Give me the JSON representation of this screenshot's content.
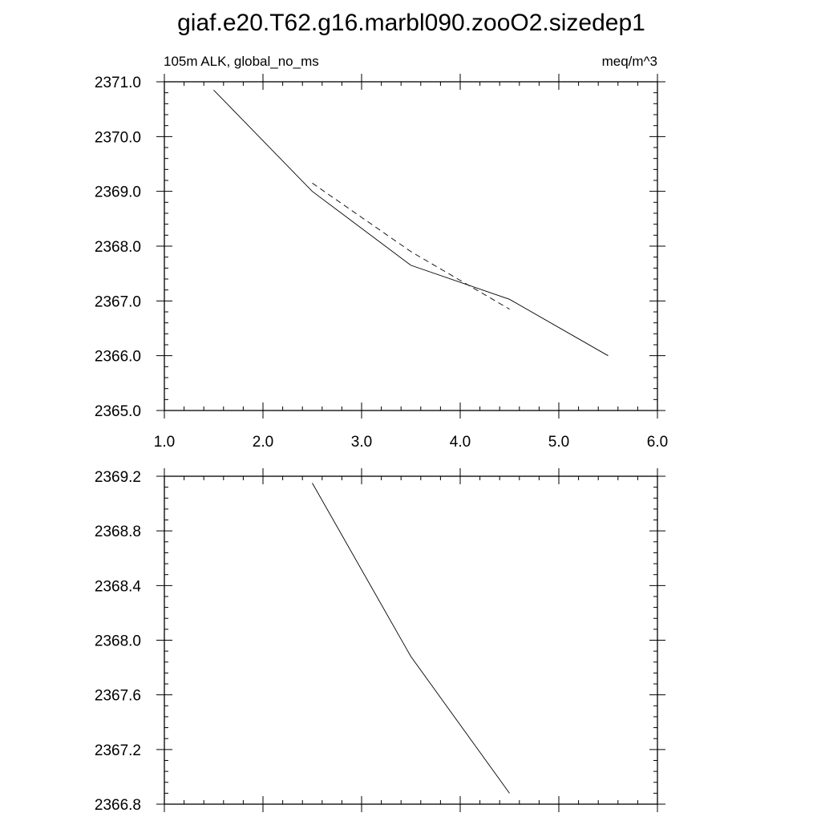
{
  "title": "giaf.e20.T62.g16.marbl090.zooO2.sizedep1",
  "chart_data": [
    {
      "type": "line",
      "left_label": "105m ALK, global_no_ms",
      "right_label": "meq/m^3",
      "xlim": [
        1.0,
        6.0
      ],
      "ylim": [
        2365.0,
        2371.0
      ],
      "x_ticks": [
        1.0,
        2.0,
        3.0,
        4.0,
        5.0,
        6.0
      ],
      "x_tick_labels": [
        "1.0",
        "2.0",
        "3.0",
        "4.0",
        "5.0",
        "6.0"
      ],
      "y_ticks": [
        2365.0,
        2366.0,
        2367.0,
        2368.0,
        2369.0,
        2370.0,
        2371.0
      ],
      "y_tick_labels": [
        "2365.0",
        "2366.0",
        "2367.0",
        "2368.0",
        "2369.0",
        "2370.0",
        "2371.0"
      ],
      "grid": false,
      "series": [
        {
          "style": "solid",
          "color": "#000000",
          "x": [
            1.5,
            2.5,
            3.5,
            4.5,
            5.5
          ],
          "y": [
            2370.85,
            2369.0,
            2367.65,
            2367.03,
            2366.0
          ]
        },
        {
          "style": "dashed",
          "color": "#000000",
          "x": [
            2.5,
            3.5,
            4.5
          ],
          "y": [
            2369.15,
            2367.9,
            2366.85
          ]
        }
      ]
    },
    {
      "type": "line",
      "xlim": [
        1.0,
        6.0
      ],
      "ylim": [
        2366.8,
        2369.2
      ],
      "x_ticks": [
        1.0,
        2.0,
        3.0,
        4.0,
        5.0,
        6.0
      ],
      "x_tick_labels": [],
      "y_ticks": [
        2366.8,
        2367.2,
        2367.6,
        2368.0,
        2368.4,
        2368.8,
        2369.2
      ],
      "y_tick_labels": [
        "2366.8",
        "2367.2",
        "2367.6",
        "2368.0",
        "2368.4",
        "2368.8",
        "2369.2"
      ],
      "grid": false,
      "series": [
        {
          "style": "solid",
          "color": "#000000",
          "x": [
            2.5,
            3.5,
            4.5
          ],
          "y": [
            2369.15,
            2367.88,
            2366.88
          ]
        }
      ]
    }
  ]
}
